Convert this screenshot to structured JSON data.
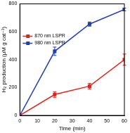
{
  "chart_data": {
    "type": "line",
    "x_label": "Time (min)",
    "y_label": "H₂ production (μM g cat⁻¹)",
    "x": [
      0,
      20,
      40,
      60
    ],
    "series": [
      {
        "name": "870 nm LSPR",
        "color": "#e0241b",
        "marker": "square",
        "values": [
          0,
          150,
          210,
          400
        ],
        "errors": [
          0,
          20,
          20,
          40
        ]
      },
      {
        "name": "980 nm LSPR",
        "color": "#1f3fbf",
        "marker": "square",
        "values": [
          0,
          460,
          655,
          760
        ],
        "errors": [
          0,
          30,
          15,
          10
        ]
      }
    ],
    "xlim": [
      0,
      60
    ],
    "xticks": [
      0,
      10,
      20,
      30,
      40,
      50,
      60
    ],
    "ylim": [
      0,
      800
    ],
    "yticks": [
      0,
      200,
      400,
      600,
      800
    ],
    "grid": false,
    "legend": "upper left"
  }
}
